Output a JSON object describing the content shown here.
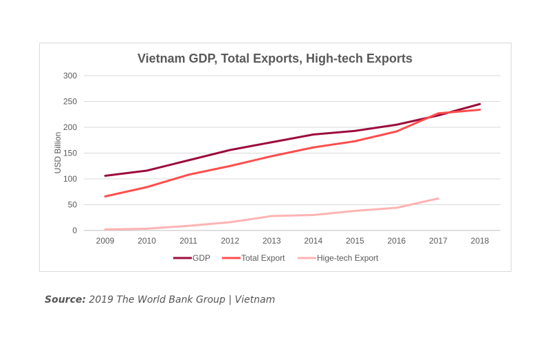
{
  "chart_data": {
    "type": "line",
    "title": "Vietnam GDP, Total Exports, High-tech Exports",
    "xlabel": "",
    "ylabel": "USD Billion",
    "ylim": [
      0,
      300
    ],
    "yticks": [
      0,
      50,
      100,
      150,
      200,
      250,
      300
    ],
    "grid": true,
    "legend": "bottom",
    "categories": [
      "2009",
      "2010",
      "2011",
      "2012",
      "2013",
      "2014",
      "2015",
      "2016",
      "2017",
      "2018"
    ],
    "series": [
      {
        "name": "GDP",
        "color": "#9b0a3c",
        "values": [
          106,
          116,
          136,
          156,
          171,
          186,
          193,
          205,
          223,
          245
        ]
      },
      {
        "name": "Total Export",
        "color": "#ff4d4d",
        "values": [
          66,
          84,
          108,
          125,
          144,
          161,
          173,
          192,
          227,
          234
        ]
      },
      {
        "name": "Hige-tech Export",
        "color": "#ffb3b3",
        "values": [
          2,
          3.5,
          9,
          16,
          28,
          30,
          38,
          44,
          62,
          null
        ]
      }
    ]
  },
  "source": {
    "label": "Source:",
    "text": "2019 The World Bank Group | Vietnam"
  }
}
